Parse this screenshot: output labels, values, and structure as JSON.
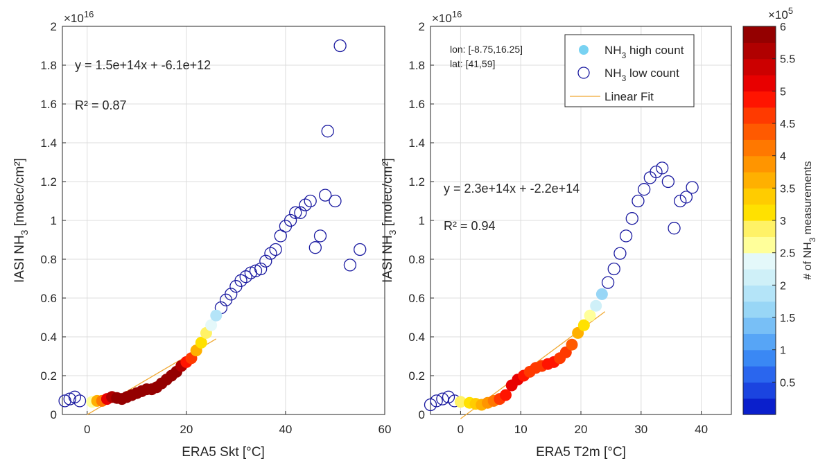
{
  "chart_data": [
    {
      "type": "scatter",
      "xlabel": "ERA5 Skt [°C]",
      "ylabel_main": "IASI NH",
      "ylabel_sub": "3",
      "ylabel_tail": " [molec/cm²]",
      "y_exponent_base": "×10",
      "y_exponent_power": "16",
      "xlim": [
        -5,
        60
      ],
      "ylim": [
        0,
        2
      ],
      "xticks": [
        0,
        20,
        40,
        60
      ],
      "yticks": [
        0,
        0.2,
        0.4,
        0.6,
        0.8,
        1,
        1.2,
        1.4,
        1.6,
        1.8,
        2
      ],
      "ytick_labels": [
        "0",
        "0.2",
        "0.4",
        "0.6",
        "0.8",
        "1",
        "1.2",
        "1.4",
        "1.6",
        "1.8",
        "2"
      ],
      "grid": true,
      "fit": {
        "equation": "y = 1.5e+14x + -6.1e+12",
        "r2": "R² = 0.87",
        "x_range": [
          0,
          26
        ],
        "slope": 0.015,
        "intercept": -0.00061
      },
      "high_count_points": [
        {
          "x": 1,
          "y": 0.065,
          "c": 2.7
        },
        {
          "x": 2,
          "y": 0.07,
          "c": 3.5
        },
        {
          "x": 3,
          "y": 0.07,
          "c": 4.1
        },
        {
          "x": 4,
          "y": 0.08,
          "c": 5.2
        },
        {
          "x": 5,
          "y": 0.09,
          "c": 5.5
        },
        {
          "x": 6,
          "y": 0.085,
          "c": 5.8
        },
        {
          "x": 7,
          "y": 0.08,
          "c": 6
        },
        {
          "x": 8,
          "y": 0.09,
          "c": 6
        },
        {
          "x": 9,
          "y": 0.1,
          "c": 6
        },
        {
          "x": 10,
          "y": 0.11,
          "c": 6
        },
        {
          "x": 11,
          "y": 0.12,
          "c": 6
        },
        {
          "x": 12,
          "y": 0.13,
          "c": 5.9
        },
        {
          "x": 13,
          "y": 0.13,
          "c": 6
        },
        {
          "x": 14,
          "y": 0.14,
          "c": 6
        },
        {
          "x": 15,
          "y": 0.16,
          "c": 6
        },
        {
          "x": 16,
          "y": 0.18,
          "c": 6
        },
        {
          "x": 17,
          "y": 0.2,
          "c": 5.9
        },
        {
          "x": 18,
          "y": 0.22,
          "c": 5.8
        },
        {
          "x": 19,
          "y": 0.25,
          "c": 5.6
        },
        {
          "x": 20,
          "y": 0.27,
          "c": 4.8
        },
        {
          "x": 21,
          "y": 0.29,
          "c": 4.5
        },
        {
          "x": 22,
          "y": 0.33,
          "c": 3.5
        },
        {
          "x": 23,
          "y": 0.37,
          "c": 3.1
        },
        {
          "x": 24,
          "y": 0.42,
          "c": 2.9
        },
        {
          "x": 25,
          "y": 0.46,
          "c": 2.3
        },
        {
          "x": 26,
          "y": 0.51,
          "c": 1.8
        }
      ],
      "low_count_points": [
        {
          "x": -4.5,
          "y": 0.07
        },
        {
          "x": -3.5,
          "y": 0.08
        },
        {
          "x": -2.5,
          "y": 0.09
        },
        {
          "x": -1.5,
          "y": 0.07
        },
        {
          "x": 27,
          "y": 0.55
        },
        {
          "x": 28,
          "y": 0.59
        },
        {
          "x": 29,
          "y": 0.62
        },
        {
          "x": 30,
          "y": 0.66
        },
        {
          "x": 31,
          "y": 0.69
        },
        {
          "x": 32,
          "y": 0.71
        },
        {
          "x": 33,
          "y": 0.73
        },
        {
          "x": 34,
          "y": 0.74
        },
        {
          "x": 35,
          "y": 0.75
        },
        {
          "x": 36,
          "y": 0.79
        },
        {
          "x": 37,
          "y": 0.83
        },
        {
          "x": 38,
          "y": 0.85
        },
        {
          "x": 39,
          "y": 0.92
        },
        {
          "x": 40,
          "y": 0.97
        },
        {
          "x": 41,
          "y": 1.0
        },
        {
          "x": 42,
          "y": 1.04
        },
        {
          "x": 43,
          "y": 1.04
        },
        {
          "x": 44,
          "y": 1.08
        },
        {
          "x": 45,
          "y": 1.1
        },
        {
          "x": 46,
          "y": 0.86
        },
        {
          "x": 47,
          "y": 0.92
        },
        {
          "x": 48,
          "y": 1.13
        },
        {
          "x": 48.5,
          "y": 1.46
        },
        {
          "x": 50,
          "y": 1.1
        },
        {
          "x": 51,
          "y": 1.9
        },
        {
          "x": 53,
          "y": 0.77
        },
        {
          "x": 55,
          "y": 0.85
        }
      ]
    },
    {
      "type": "scatter",
      "xlabel": "ERA5 T2m [°C]",
      "ylabel_main": "IASI NH",
      "ylabel_sub": "3",
      "ylabel_tail": " [molec/cm²]",
      "y_exponent_base": "×10",
      "y_exponent_power": "16",
      "xlim": [
        -5,
        45
      ],
      "ylim": [
        0,
        2
      ],
      "xticks": [
        0,
        10,
        20,
        30,
        40
      ],
      "yticks": [
        0,
        0.2,
        0.4,
        0.6,
        0.8,
        1,
        1.2,
        1.4,
        1.6,
        1.8,
        2
      ],
      "ytick_labels": [
        "0",
        "0.2",
        "0.4",
        "0.6",
        "0.8",
        "1",
        "1.2",
        "1.4",
        "1.6",
        "1.8",
        "2"
      ],
      "grid": true,
      "fit": {
        "equation": "y = 2.3e+14x + -2.2e+14",
        "r2": "R² = 0.94",
        "x_range": [
          0,
          24
        ],
        "slope": 0.023,
        "intercept": -0.022
      },
      "annotation_lines": [
        "lon: [-8.75,16.25]",
        "lat: [41,59]"
      ],
      "legend": {
        "position": "top-right",
        "high_main": "NH",
        "high_sub": "3",
        "high_tail": " high count",
        "low_main": "NH",
        "low_sub": "3",
        "low_tail": " low count",
        "fit_label": "Linear Fit"
      },
      "high_count_points": [
        {
          "x": 0,
          "y": 0.065,
          "c": 2.8
        },
        {
          "x": 1.5,
          "y": 0.06,
          "c": 3.2
        },
        {
          "x": 2.5,
          "y": 0.055,
          "c": 3.4
        },
        {
          "x": 3.5,
          "y": 0.05,
          "c": 3.6
        },
        {
          "x": 4.5,
          "y": 0.06,
          "c": 3.9
        },
        {
          "x": 5.5,
          "y": 0.07,
          "c": 4.2
        },
        {
          "x": 6.5,
          "y": 0.08,
          "c": 4.5
        },
        {
          "x": 7.5,
          "y": 0.1,
          "c": 4.8
        },
        {
          "x": 8.5,
          "y": 0.15,
          "c": 5.2
        },
        {
          "x": 9.5,
          "y": 0.18,
          "c": 5.0
        },
        {
          "x": 10.5,
          "y": 0.2,
          "c": 4.8
        },
        {
          "x": 11.5,
          "y": 0.22,
          "c": 4.6
        },
        {
          "x": 12.5,
          "y": 0.24,
          "c": 4.6
        },
        {
          "x": 13.5,
          "y": 0.25,
          "c": 4.7
        },
        {
          "x": 14.5,
          "y": 0.26,
          "c": 4.8
        },
        {
          "x": 15.5,
          "y": 0.27,
          "c": 4.8
        },
        {
          "x": 16.5,
          "y": 0.29,
          "c": 4.7
        },
        {
          "x": 17.5,
          "y": 0.32,
          "c": 4.6
        },
        {
          "x": 18.5,
          "y": 0.36,
          "c": 4.3
        },
        {
          "x": 19.5,
          "y": 0.42,
          "c": 3.6
        },
        {
          "x": 20.5,
          "y": 0.46,
          "c": 3.0
        },
        {
          "x": 21.5,
          "y": 0.51,
          "c": 2.5
        },
        {
          "x": 22.5,
          "y": 0.56,
          "c": 2.0
        },
        {
          "x": 23.5,
          "y": 0.62,
          "c": 1.6
        }
      ],
      "low_count_points": [
        {
          "x": -5,
          "y": 0.05
        },
        {
          "x": -4,
          "y": 0.07
        },
        {
          "x": -3,
          "y": 0.08
        },
        {
          "x": -2,
          "y": 0.09
        },
        {
          "x": -1,
          "y": 0.07
        },
        {
          "x": 24.5,
          "y": 0.68
        },
        {
          "x": 25.5,
          "y": 0.75
        },
        {
          "x": 26.5,
          "y": 0.83
        },
        {
          "x": 27.5,
          "y": 0.92
        },
        {
          "x": 28.5,
          "y": 1.01
        },
        {
          "x": 29.5,
          "y": 1.1
        },
        {
          "x": 30.5,
          "y": 1.16
        },
        {
          "x": 31.5,
          "y": 1.22
        },
        {
          "x": 32.5,
          "y": 1.25
        },
        {
          "x": 33.5,
          "y": 1.27
        },
        {
          "x": 34.5,
          "y": 1.2
        },
        {
          "x": 35.5,
          "y": 0.96
        },
        {
          "x": 36.5,
          "y": 1.1
        },
        {
          "x": 37.5,
          "y": 1.12
        },
        {
          "x": 38.5,
          "y": 1.17
        }
      ]
    }
  ],
  "colorbar": {
    "label_main": "# of NH",
    "label_sub": "3",
    "label_tail": " measurements",
    "exponent_base": "×10",
    "exponent_power": "5",
    "range": [
      0,
      6
    ],
    "tick_values": [
      0.5,
      1,
      1.5,
      2,
      2.5,
      3,
      3.5,
      4,
      4.5,
      5,
      5.5,
      6
    ],
    "tick_labels": [
      "0.5",
      "1",
      "1.5",
      "2",
      "2.5",
      "3",
      "3.5",
      "4",
      "4.5",
      "5",
      "5.5",
      "6"
    ],
    "colors": [
      "#0a1fcc",
      "#1b44e0",
      "#2a66ee",
      "#3a88f4",
      "#57a5f6",
      "#78bff6",
      "#98d6f6",
      "#b4e4f8",
      "#cff0f8",
      "#e4f8fa",
      "#ffff9a",
      "#fff266",
      "#ffe100",
      "#ffcc00",
      "#ffb000",
      "#ff9500",
      "#ff7800",
      "#ff5a00",
      "#ff3a00",
      "#ff1400",
      "#e80000",
      "#cc0000",
      "#b00000",
      "#940000"
    ]
  },
  "colors": {
    "low_count_marker": "#1a1aa0",
    "fit_line": "#f0a830",
    "grid": "#dcdcdc",
    "axis": "#262626"
  }
}
